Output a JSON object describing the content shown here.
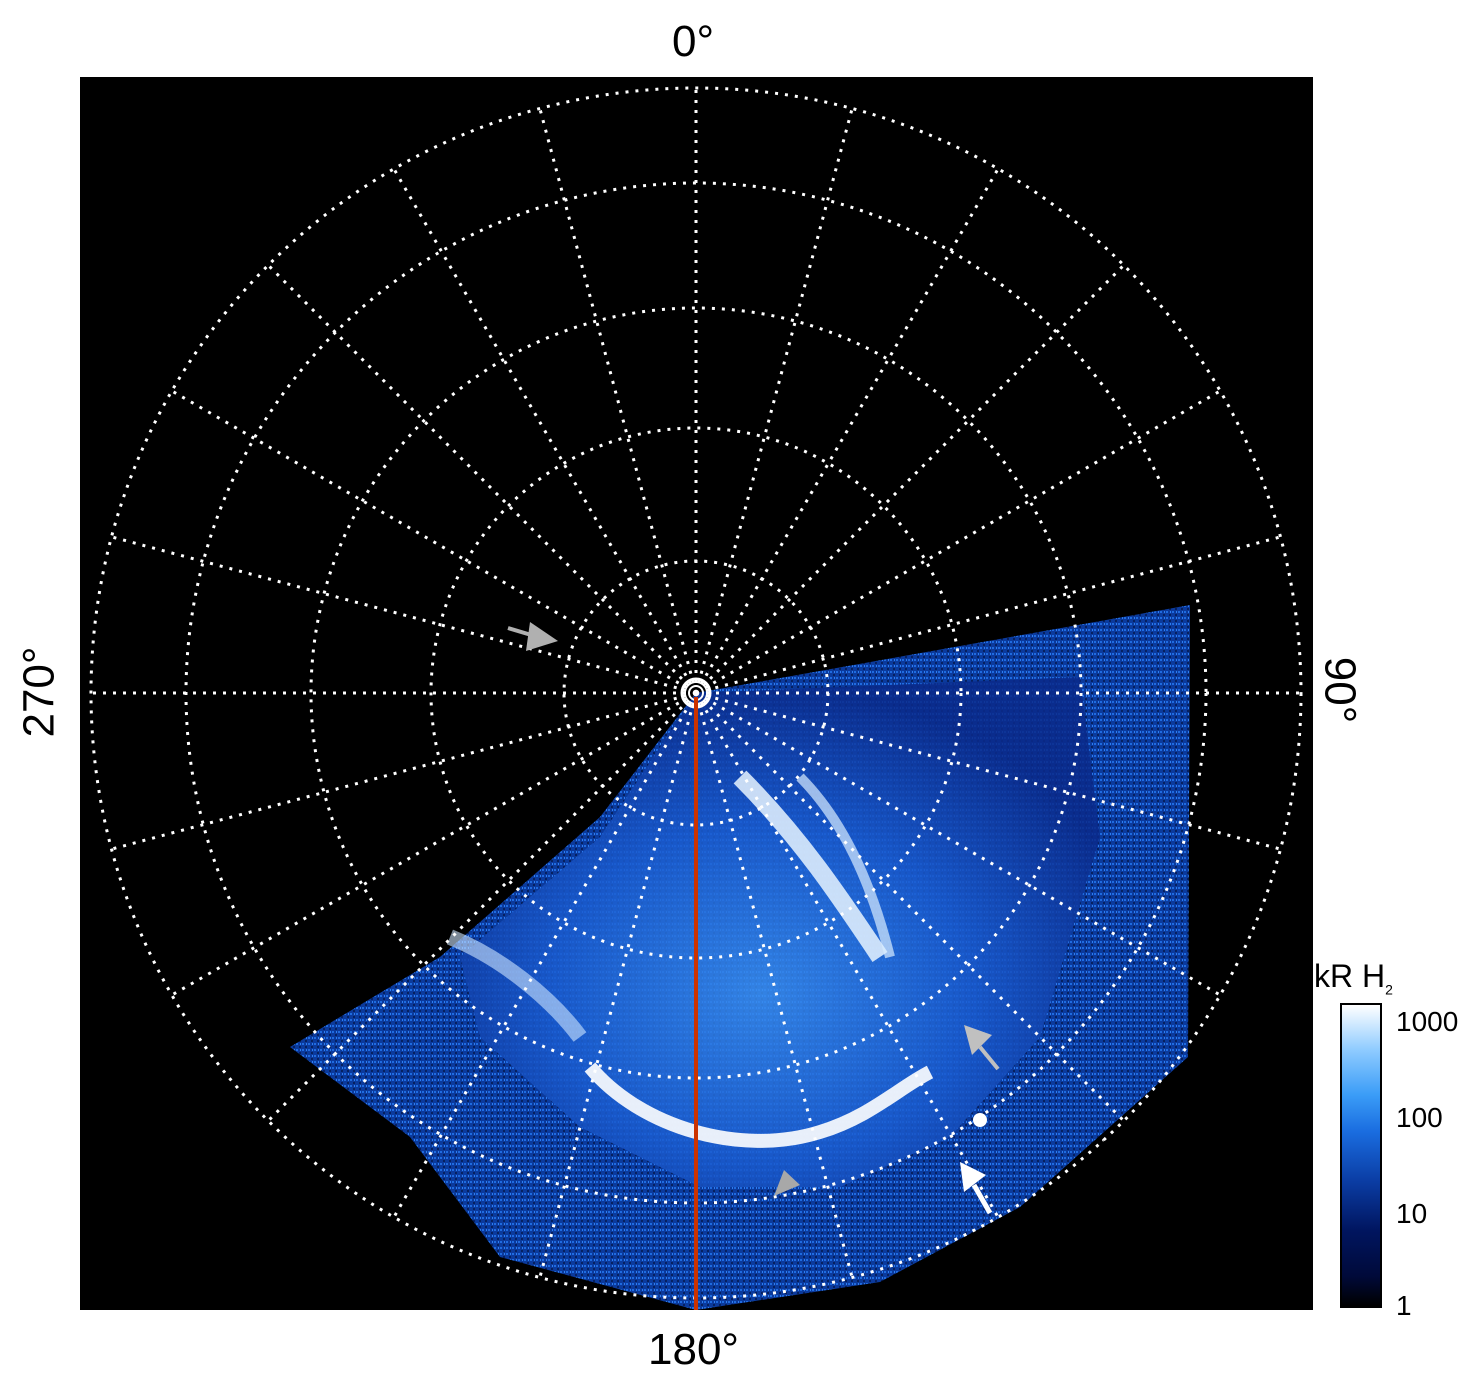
{
  "labels": {
    "top": "0°",
    "right": "90°",
    "bottom": "180°",
    "left": "270°"
  },
  "colorbar": {
    "title_main": "kR H",
    "title_sub": "2",
    "ticks": [
      "1000",
      "100",
      "10",
      "1"
    ]
  },
  "colors": {
    "background": "#000000",
    "aurora_low": "#0b2e8a",
    "aurora_high": "#ffffff",
    "meridian_line": "#cc3300",
    "grid": "#ffffff",
    "arrow_gray": "#b0b0b0"
  }
}
